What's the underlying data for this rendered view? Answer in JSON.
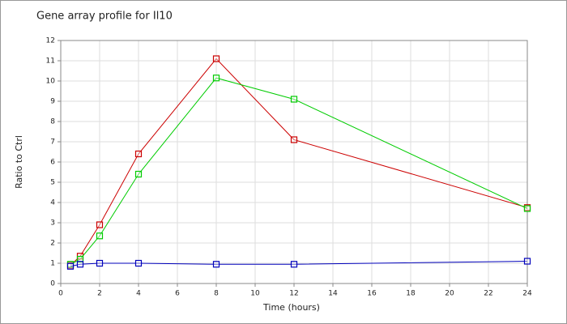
{
  "chart_data": {
    "type": "line",
    "title": "Gene array profile for Il10",
    "x_label": "Time (hours)",
    "y_label": "Ratio to Ctrl",
    "x": [
      0.5,
      1,
      2,
      4,
      8,
      12,
      24
    ],
    "series": [
      {
        "color": "#cc0000",
        "values": [
          0.9,
          1.35,
          2.9,
          6.4,
          11.1,
          7.1,
          3.75
        ]
      },
      {
        "color": "#00cc00",
        "values": [
          0.95,
          1.2,
          2.35,
          5.4,
          10.15,
          9.1,
          3.7
        ]
      },
      {
        "color": "#0000bb",
        "values": [
          0.85,
          0.95,
          1.0,
          1.0,
          0.95,
          0.95,
          1.1
        ]
      }
    ],
    "xlim": [
      0,
      24
    ],
    "ylim": [
      0,
      12
    ],
    "xticks": [
      0,
      2,
      4,
      6,
      8,
      10,
      12,
      14,
      16,
      18,
      20,
      22,
      24
    ],
    "yticks": [
      0,
      1,
      2,
      3,
      4,
      5,
      6,
      7,
      8,
      9,
      10,
      11,
      12
    ],
    "grid": true
  }
}
